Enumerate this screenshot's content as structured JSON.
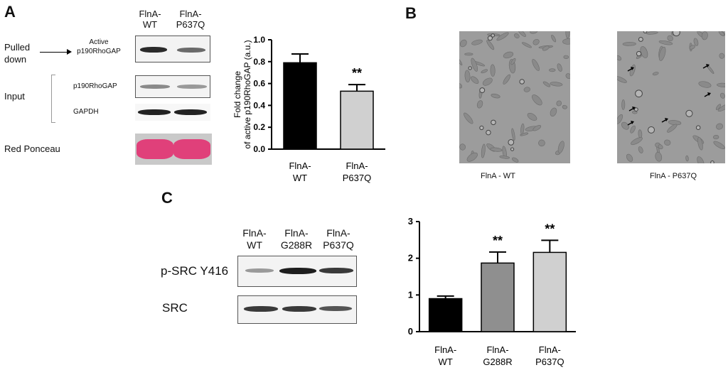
{
  "panels": {
    "a": "A",
    "b": "B",
    "c": "C"
  },
  "panel_a": {
    "lanes": [
      [
        "FlnA-",
        "WT"
      ],
      [
        "FlnA-",
        "P637Q"
      ]
    ],
    "rows": {
      "pulled_down": [
        "Pulled",
        "down"
      ],
      "active_label": [
        "Active",
        "p190RhoGAP"
      ],
      "input": "Input",
      "p190": "p190RhoGAP",
      "gapdh": "GAPDH",
      "red_ponceau": "Red Ponceau"
    }
  },
  "panel_b": {
    "captions": [
      "FlnA - WT",
      "FlnA - P637Q"
    ]
  },
  "panel_c": {
    "lanes": [
      [
        "FlnA-",
        "WT"
      ],
      [
        "FlnA-",
        "G288R"
      ],
      [
        "FlnA-",
        "P637Q"
      ]
    ],
    "rows": {
      "psrc": "p-SRC Y416",
      "src": "SRC"
    }
  },
  "colors": {
    "black_bar": "#000000",
    "gray_bar": "#8f8f8f",
    "light_bar": "#d0d0d0",
    "ponceau": "#e0407a"
  },
  "chart_data": [
    {
      "type": "bar",
      "categories": [
        [
          "FlnA-",
          "WT"
        ],
        [
          "FlnA-",
          "P637Q"
        ]
      ],
      "values": [
        0.79,
        0.53
      ],
      "errors": [
        0.08,
        0.06
      ],
      "significance": [
        "",
        "**"
      ],
      "ylabel": [
        "Fold change",
        "of active p190RhoGAP (a.u.)"
      ],
      "ylim": [
        0,
        1.0
      ],
      "yticks": [
        "0.0",
        "0.2",
        "0.4",
        "0.6",
        "0.8",
        "1.0"
      ],
      "colors": [
        "#000000",
        "#d0d0d0"
      ]
    },
    {
      "type": "bar",
      "categories": [
        [
          "FlnA-",
          "WT"
        ],
        [
          "FlnA-",
          "G288R"
        ],
        [
          "FlnA-",
          "P637Q"
        ]
      ],
      "values": [
        0.9,
        1.87,
        2.16
      ],
      "errors": [
        0.07,
        0.3,
        0.33
      ],
      "significance": [
        "",
        "**",
        "**"
      ],
      "ylabel": "",
      "ylim": [
        0,
        3
      ],
      "yticks": [
        "0",
        "1",
        "2",
        "3"
      ],
      "colors": [
        "#000000",
        "#8f8f8f",
        "#d0d0d0"
      ]
    }
  ]
}
